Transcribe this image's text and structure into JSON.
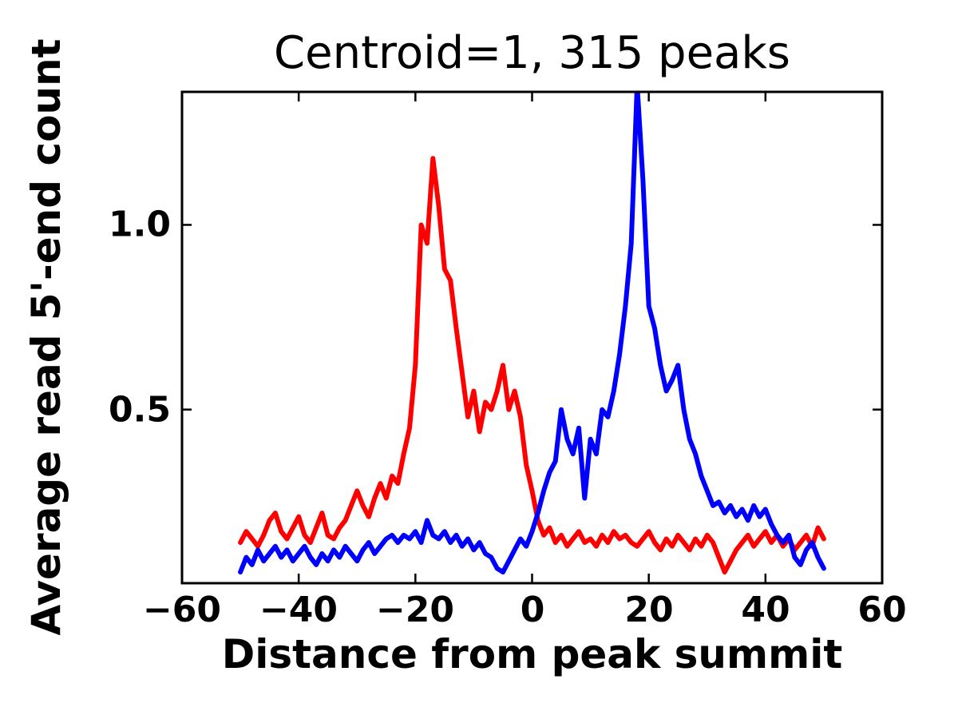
{
  "chart_data": {
    "type": "line",
    "title": "Centroid=1, 315 peaks",
    "xlabel": "Distance from peak summit",
    "ylabel": "Average read 5'-end count",
    "grid": false,
    "legend": "none",
    "xlim": [
      -60,
      60
    ],
    "ylim": [
      0.03,
      1.36
    ],
    "x_tick_values": [
      -60,
      -40,
      -20,
      0,
      20,
      40,
      60
    ],
    "x_tick_labels": [
      "−60",
      "−40",
      "−20",
      "0",
      "20",
      "40",
      "60"
    ],
    "y_tick_values": [
      0.5,
      1.0
    ],
    "y_tick_labels": [
      "0.5",
      "1.0"
    ],
    "frame_color": "#000000",
    "x": [
      -50,
      -49,
      -48,
      -47,
      -46,
      -45,
      -44,
      -43,
      -42,
      -41,
      -40,
      -39,
      -38,
      -37,
      -36,
      -35,
      -34,
      -33,
      -32,
      -31,
      -30,
      -29,
      -28,
      -27,
      -26,
      -25,
      -24,
      -23,
      -22,
      -21,
      -20,
      -19,
      -18,
      -17,
      -16,
      -15,
      -14,
      -13,
      -12,
      -11,
      -10,
      -9,
      -8,
      -7,
      -6,
      -5,
      -4,
      -3,
      -2,
      -1,
      0,
      1,
      2,
      3,
      4,
      5,
      6,
      7,
      8,
      9,
      10,
      11,
      12,
      13,
      14,
      15,
      16,
      17,
      18,
      19,
      20,
      21,
      22,
      23,
      24,
      25,
      26,
      27,
      28,
      29,
      30,
      31,
      32,
      33,
      34,
      35,
      36,
      37,
      38,
      39,
      40,
      41,
      42,
      43,
      44,
      45,
      46,
      47,
      48,
      49,
      50
    ],
    "series": [
      {
        "name": "red",
        "color": "#ff0000",
        "values": [
          0.14,
          0.17,
          0.15,
          0.13,
          0.16,
          0.2,
          0.22,
          0.17,
          0.15,
          0.18,
          0.21,
          0.16,
          0.14,
          0.18,
          0.22,
          0.16,
          0.15,
          0.18,
          0.2,
          0.24,
          0.28,
          0.24,
          0.21,
          0.26,
          0.3,
          0.26,
          0.32,
          0.3,
          0.38,
          0.45,
          0.62,
          1.0,
          0.95,
          1.18,
          1.05,
          0.88,
          0.85,
          0.72,
          0.6,
          0.48,
          0.55,
          0.44,
          0.52,
          0.5,
          0.55,
          0.62,
          0.5,
          0.55,
          0.48,
          0.35,
          0.28,
          0.2,
          0.16,
          0.18,
          0.14,
          0.16,
          0.13,
          0.15,
          0.17,
          0.14,
          0.15,
          0.13,
          0.16,
          0.14,
          0.17,
          0.15,
          0.16,
          0.14,
          0.13,
          0.15,
          0.17,
          0.14,
          0.12,
          0.15,
          0.13,
          0.16,
          0.14,
          0.12,
          0.15,
          0.13,
          0.16,
          0.14,
          0.1,
          0.06,
          0.09,
          0.12,
          0.14,
          0.16,
          0.13,
          0.15,
          0.17,
          0.14,
          0.16,
          0.13,
          0.15,
          0.12,
          0.14,
          0.16,
          0.13,
          0.18,
          0.15
        ]
      },
      {
        "name": "blue",
        "color": "#0000ff",
        "values": [
          0.06,
          0.1,
          0.08,
          0.12,
          0.09,
          0.11,
          0.13,
          0.1,
          0.12,
          0.09,
          0.11,
          0.13,
          0.1,
          0.08,
          0.11,
          0.09,
          0.12,
          0.1,
          0.13,
          0.11,
          0.09,
          0.12,
          0.14,
          0.11,
          0.13,
          0.15,
          0.16,
          0.14,
          0.16,
          0.15,
          0.17,
          0.14,
          0.2,
          0.16,
          0.15,
          0.17,
          0.14,
          0.16,
          0.13,
          0.15,
          0.12,
          0.14,
          0.11,
          0.1,
          0.07,
          0.06,
          0.09,
          0.12,
          0.15,
          0.13,
          0.17,
          0.22,
          0.28,
          0.33,
          0.36,
          0.5,
          0.42,
          0.38,
          0.45,
          0.26,
          0.42,
          0.38,
          0.5,
          0.48,
          0.55,
          0.65,
          0.78,
          0.95,
          1.38,
          1.12,
          0.78,
          0.72,
          0.62,
          0.55,
          0.58,
          0.62,
          0.5,
          0.42,
          0.38,
          0.32,
          0.28,
          0.24,
          0.25,
          0.22,
          0.24,
          0.21,
          0.23,
          0.2,
          0.24,
          0.21,
          0.23,
          0.19,
          0.16,
          0.14,
          0.16,
          0.1,
          0.08,
          0.12,
          0.14,
          0.1,
          0.07
        ]
      }
    ]
  }
}
